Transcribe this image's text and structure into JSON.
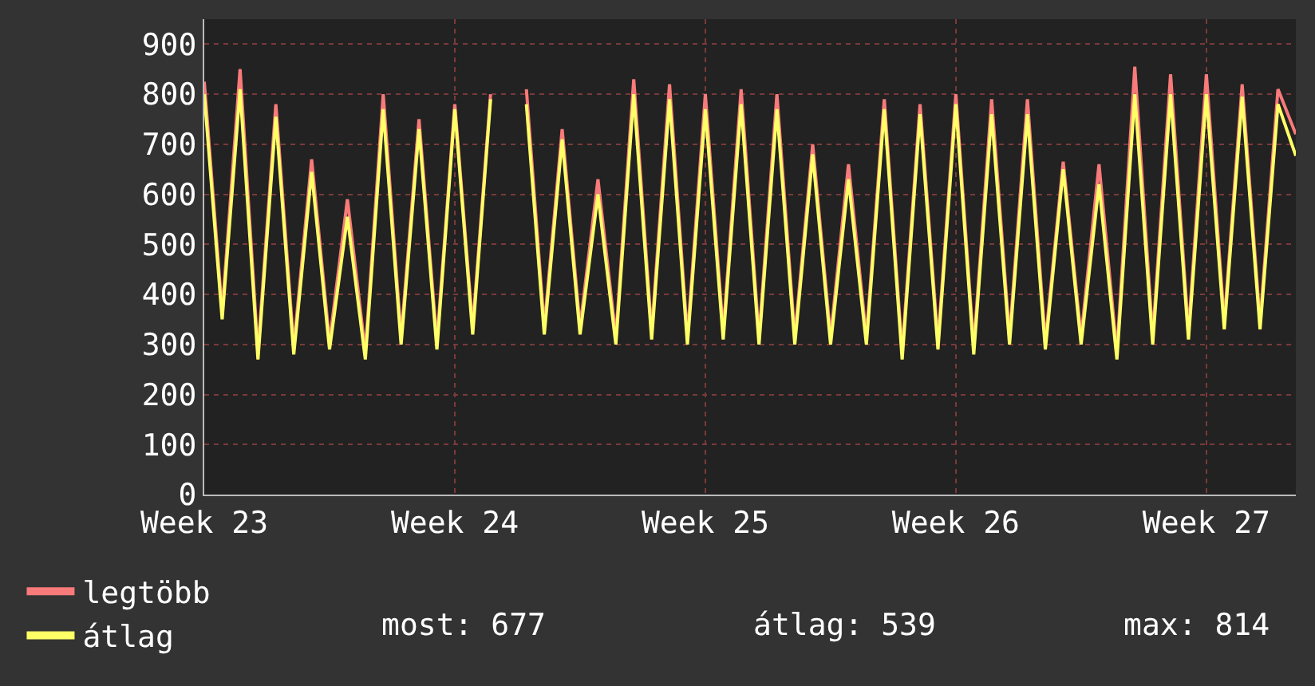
{
  "chart_data": {
    "type": "line",
    "categories": [
      "Week 23",
      null,
      null,
      null,
      null,
      null,
      null,
      null,
      null,
      null,
      null,
      null,
      null,
      null,
      "Week 24",
      null,
      null,
      null,
      null,
      null,
      null,
      null,
      null,
      null,
      null,
      null,
      null,
      null,
      "Week 25",
      null,
      null,
      null,
      null,
      null,
      null,
      null,
      null,
      null,
      null,
      null,
      null,
      null,
      "Week 26",
      null,
      null,
      null,
      null,
      null,
      null,
      null,
      null,
      null,
      null,
      null,
      null,
      null,
      "Week 27",
      null,
      null,
      null,
      null,
      null
    ],
    "series": [
      {
        "name": "legtöbb",
        "color": "#f87a7a",
        "values": [
          825,
          365,
          850,
          285,
          780,
          295,
          670,
          305,
          590,
          285,
          800,
          315,
          750,
          305,
          780,
          335,
          800,
          null,
          810,
          335,
          730,
          335,
          630,
          315,
          830,
          325,
          820,
          315,
          800,
          325,
          810,
          315,
          800,
          315,
          700,
          315,
          660,
          315,
          790,
          285,
          780,
          305,
          800,
          295,
          790,
          315,
          790,
          305,
          665,
          315,
          660,
          285,
          855,
          315,
          840,
          325,
          840,
          345,
          820,
          345,
          810,
          720
        ]
      },
      {
        "name": "átlag",
        "color": "#ffff66",
        "values": [
          800,
          350,
          810,
          270,
          755,
          280,
          645,
          290,
          555,
          270,
          770,
          300,
          730,
          290,
          770,
          320,
          790,
          null,
          780,
          320,
          710,
          320,
          600,
          300,
          800,
          310,
          790,
          300,
          770,
          310,
          780,
          300,
          770,
          300,
          680,
          300,
          630,
          300,
          770,
          270,
          760,
          290,
          780,
          280,
          760,
          300,
          760,
          290,
          650,
          300,
          620,
          270,
          800,
          300,
          800,
          310,
          800,
          330,
          795,
          330,
          780,
          677
        ]
      }
    ],
    "ylim": [
      0,
      950
    ],
    "yticks": [
      0,
      100,
      200,
      300,
      400,
      500,
      600,
      700,
      800,
      900
    ],
    "grid": true,
    "legend": "bottom left",
    "line_style": "solid",
    "marker": "none",
    "annotations": [
      "most: 677",
      "átlag: 539",
      "max: 814"
    ]
  }
}
